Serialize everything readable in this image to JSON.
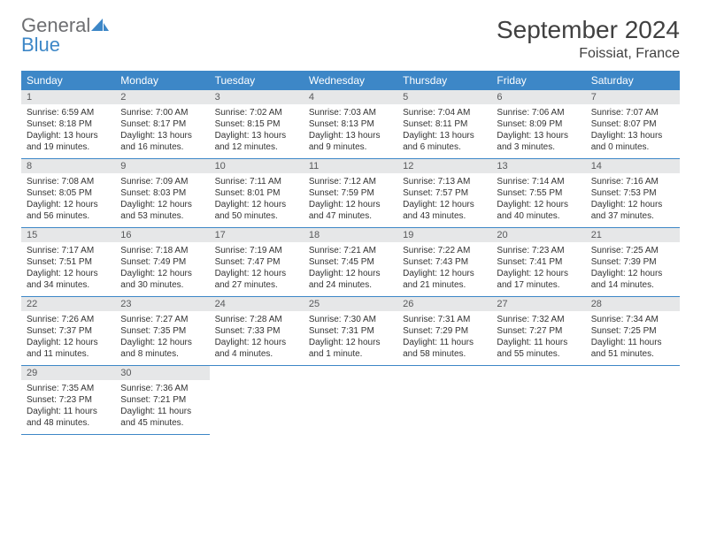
{
  "brand": {
    "word1": "General",
    "word2": "Blue"
  },
  "title": "September 2024",
  "location": "Foissiat, France",
  "colors": {
    "header_bg": "#3d87c7",
    "header_text": "#ffffff",
    "datebar_bg": "#e6e7e8",
    "datebar_text": "#58595b",
    "cell_border": "#3d87c7",
    "body_text": "#333333",
    "logo_gray": "#6d6e71",
    "logo_blue": "#3d87c7"
  },
  "day_headers": [
    "Sunday",
    "Monday",
    "Tuesday",
    "Wednesday",
    "Thursday",
    "Friday",
    "Saturday"
  ],
  "weeks": [
    [
      {
        "date": "1",
        "sunrise": "6:59 AM",
        "sunset": "8:18 PM",
        "daylight": "13 hours and 19 minutes."
      },
      {
        "date": "2",
        "sunrise": "7:00 AM",
        "sunset": "8:17 PM",
        "daylight": "13 hours and 16 minutes."
      },
      {
        "date": "3",
        "sunrise": "7:02 AM",
        "sunset": "8:15 PM",
        "daylight": "13 hours and 12 minutes."
      },
      {
        "date": "4",
        "sunrise": "7:03 AM",
        "sunset": "8:13 PM",
        "daylight": "13 hours and 9 minutes."
      },
      {
        "date": "5",
        "sunrise": "7:04 AM",
        "sunset": "8:11 PM",
        "daylight": "13 hours and 6 minutes."
      },
      {
        "date": "6",
        "sunrise": "7:06 AM",
        "sunset": "8:09 PM",
        "daylight": "13 hours and 3 minutes."
      },
      {
        "date": "7",
        "sunrise": "7:07 AM",
        "sunset": "8:07 PM",
        "daylight": "13 hours and 0 minutes."
      }
    ],
    [
      {
        "date": "8",
        "sunrise": "7:08 AM",
        "sunset": "8:05 PM",
        "daylight": "12 hours and 56 minutes."
      },
      {
        "date": "9",
        "sunrise": "7:09 AM",
        "sunset": "8:03 PM",
        "daylight": "12 hours and 53 minutes."
      },
      {
        "date": "10",
        "sunrise": "7:11 AM",
        "sunset": "8:01 PM",
        "daylight": "12 hours and 50 minutes."
      },
      {
        "date": "11",
        "sunrise": "7:12 AM",
        "sunset": "7:59 PM",
        "daylight": "12 hours and 47 minutes."
      },
      {
        "date": "12",
        "sunrise": "7:13 AM",
        "sunset": "7:57 PM",
        "daylight": "12 hours and 43 minutes."
      },
      {
        "date": "13",
        "sunrise": "7:14 AM",
        "sunset": "7:55 PM",
        "daylight": "12 hours and 40 minutes."
      },
      {
        "date": "14",
        "sunrise": "7:16 AM",
        "sunset": "7:53 PM",
        "daylight": "12 hours and 37 minutes."
      }
    ],
    [
      {
        "date": "15",
        "sunrise": "7:17 AM",
        "sunset": "7:51 PM",
        "daylight": "12 hours and 34 minutes."
      },
      {
        "date": "16",
        "sunrise": "7:18 AM",
        "sunset": "7:49 PM",
        "daylight": "12 hours and 30 minutes."
      },
      {
        "date": "17",
        "sunrise": "7:19 AM",
        "sunset": "7:47 PM",
        "daylight": "12 hours and 27 minutes."
      },
      {
        "date": "18",
        "sunrise": "7:21 AM",
        "sunset": "7:45 PM",
        "daylight": "12 hours and 24 minutes."
      },
      {
        "date": "19",
        "sunrise": "7:22 AM",
        "sunset": "7:43 PM",
        "daylight": "12 hours and 21 minutes."
      },
      {
        "date": "20",
        "sunrise": "7:23 AM",
        "sunset": "7:41 PM",
        "daylight": "12 hours and 17 minutes."
      },
      {
        "date": "21",
        "sunrise": "7:25 AM",
        "sunset": "7:39 PM",
        "daylight": "12 hours and 14 minutes."
      }
    ],
    [
      {
        "date": "22",
        "sunrise": "7:26 AM",
        "sunset": "7:37 PM",
        "daylight": "12 hours and 11 minutes."
      },
      {
        "date": "23",
        "sunrise": "7:27 AM",
        "sunset": "7:35 PM",
        "daylight": "12 hours and 8 minutes."
      },
      {
        "date": "24",
        "sunrise": "7:28 AM",
        "sunset": "7:33 PM",
        "daylight": "12 hours and 4 minutes."
      },
      {
        "date": "25",
        "sunrise": "7:30 AM",
        "sunset": "7:31 PM",
        "daylight": "12 hours and 1 minute."
      },
      {
        "date": "26",
        "sunrise": "7:31 AM",
        "sunset": "7:29 PM",
        "daylight": "11 hours and 58 minutes."
      },
      {
        "date": "27",
        "sunrise": "7:32 AM",
        "sunset": "7:27 PM",
        "daylight": "11 hours and 55 minutes."
      },
      {
        "date": "28",
        "sunrise": "7:34 AM",
        "sunset": "7:25 PM",
        "daylight": "11 hours and 51 minutes."
      }
    ],
    [
      {
        "date": "29",
        "sunrise": "7:35 AM",
        "sunset": "7:23 PM",
        "daylight": "11 hours and 48 minutes."
      },
      {
        "date": "30",
        "sunrise": "7:36 AM",
        "sunset": "7:21 PM",
        "daylight": "11 hours and 45 minutes."
      },
      null,
      null,
      null,
      null,
      null
    ]
  ],
  "labels": {
    "sunrise": "Sunrise:",
    "sunset": "Sunset:",
    "daylight": "Daylight:"
  }
}
